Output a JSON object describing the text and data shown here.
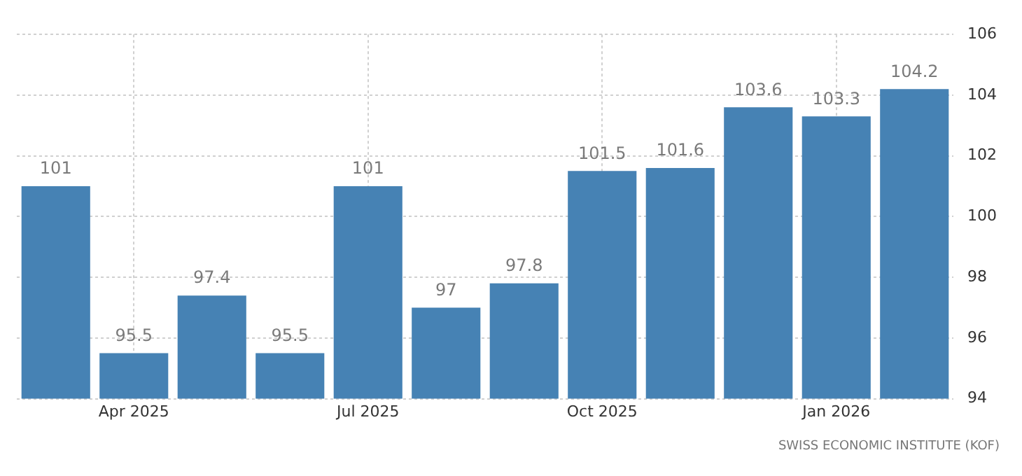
{
  "chart_data": {
    "type": "bar",
    "categories": [
      null,
      "Apr 2025",
      null,
      null,
      "Jul 2025",
      null,
      null,
      "Oct 2025",
      null,
      null,
      "Jan 2026",
      null
    ],
    "values": [
      101,
      95.5,
      97.4,
      95.5,
      101,
      97,
      97.8,
      101.5,
      101.6,
      103.6,
      103.3,
      104.2
    ],
    "color": "#4682b4",
    "ylim": [
      94,
      106
    ],
    "yticks": [
      94,
      96,
      98,
      100,
      102,
      104,
      106
    ],
    "grid": true,
    "data_labels": true,
    "annotations": [
      "SWISS ECONOMIC INSTITUTE (KOF)"
    ]
  }
}
